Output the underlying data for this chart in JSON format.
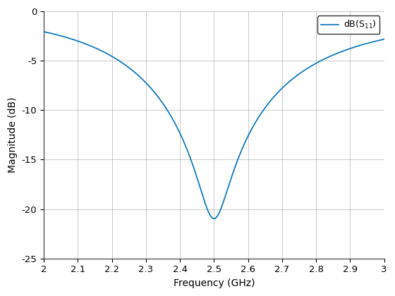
{
  "xlabel": "Frequency (GHz)",
  "ylabel": "Magnitude (dB)",
  "legend_label": "dB(S_{11})",
  "xlim": [
    2.0,
    3.0
  ],
  "ylim": [
    -25,
    0
  ],
  "xticks": [
    2.0,
    2.1,
    2.2,
    2.3,
    2.4,
    2.5,
    2.6,
    2.7,
    2.8,
    2.9,
    3.0
  ],
  "yticks": [
    -25,
    -20,
    -15,
    -10,
    -5,
    0
  ],
  "line_color": "#0072BD",
  "line_width": 1.2,
  "f0": 2.5,
  "background_color": "#ffffff",
  "grid_color": "#b0b0b0"
}
